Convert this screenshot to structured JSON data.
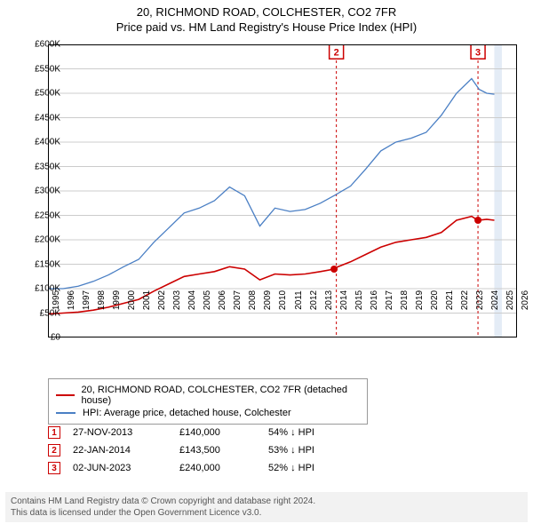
{
  "title_line1": "20, RICHMOND ROAD, COLCHESTER, CO2 7FR",
  "title_line2": "Price paid vs. HM Land Registry's House Price Index (HPI)",
  "chart": {
    "type": "line",
    "background_color": "#ffffff",
    "border_color": "#000000",
    "grid_color": "#cccccc",
    "x_axis": {
      "min_year": 1995,
      "max_year": 2026,
      "ticks": [
        1995,
        1996,
        1997,
        1998,
        1999,
        2000,
        2001,
        2002,
        2003,
        2004,
        2005,
        2006,
        2007,
        2008,
        2009,
        2010,
        2011,
        2012,
        2013,
        2014,
        2015,
        2016,
        2017,
        2018,
        2019,
        2020,
        2021,
        2022,
        2023,
        2024,
        2025,
        2026
      ],
      "label_fontsize": 10
    },
    "y_axis": {
      "min": 0,
      "max": 600000,
      "tick_step": 50000,
      "tick_labels": [
        "£0",
        "£50K",
        "£100K",
        "£150K",
        "£200K",
        "£250K",
        "£300K",
        "£350K",
        "£400K",
        "£450K",
        "£500K",
        "£550K",
        "£600K"
      ],
      "label_fontsize": 10
    },
    "grid": true,
    "grid_direction": "horizontal",
    "series": [
      {
        "name": "20, RICHMOND ROAD, COLCHESTER, CO2 7FR (detached house)",
        "color": "#cc0000",
        "line_width": 1.6,
        "data": [
          [
            1995,
            48000
          ],
          [
            1996,
            50000
          ],
          [
            1997,
            52000
          ],
          [
            1998,
            56000
          ],
          [
            1999,
            62000
          ],
          [
            2000,
            70000
          ],
          [
            2001,
            78000
          ],
          [
            2002,
            95000
          ],
          [
            2003,
            110000
          ],
          [
            2004,
            125000
          ],
          [
            2005,
            130000
          ],
          [
            2006,
            135000
          ],
          [
            2007,
            145000
          ],
          [
            2008,
            140000
          ],
          [
            2009,
            118000
          ],
          [
            2010,
            130000
          ],
          [
            2011,
            128000
          ],
          [
            2012,
            130000
          ],
          [
            2013,
            135000
          ],
          [
            2013.91,
            140000
          ],
          [
            2014.06,
            143500
          ],
          [
            2015,
            155000
          ],
          [
            2016,
            170000
          ],
          [
            2017,
            185000
          ],
          [
            2018,
            195000
          ],
          [
            2019,
            200000
          ],
          [
            2020,
            205000
          ],
          [
            2021,
            215000
          ],
          [
            2022,
            240000
          ],
          [
            2023,
            248000
          ],
          [
            2023.42,
            240000
          ],
          [
            2024,
            242000
          ],
          [
            2024.5,
            240000
          ]
        ]
      },
      {
        "name": "HPI: Average price, detached house, Colchester",
        "color": "#4a7fc4",
        "line_width": 1.3,
        "data": [
          [
            1995,
            100000
          ],
          [
            1996,
            100000
          ],
          [
            1997,
            105000
          ],
          [
            1998,
            115000
          ],
          [
            1999,
            128000
          ],
          [
            2000,
            145000
          ],
          [
            2001,
            160000
          ],
          [
            2002,
            195000
          ],
          [
            2003,
            225000
          ],
          [
            2004,
            255000
          ],
          [
            2005,
            265000
          ],
          [
            2006,
            280000
          ],
          [
            2007,
            308000
          ],
          [
            2008,
            290000
          ],
          [
            2009,
            228000
          ],
          [
            2010,
            265000
          ],
          [
            2011,
            258000
          ],
          [
            2012,
            262000
          ],
          [
            2013,
            275000
          ],
          [
            2014,
            292000
          ],
          [
            2015,
            310000
          ],
          [
            2016,
            345000
          ],
          [
            2017,
            382000
          ],
          [
            2018,
            400000
          ],
          [
            2019,
            408000
          ],
          [
            2020,
            420000
          ],
          [
            2021,
            455000
          ],
          [
            2022,
            500000
          ],
          [
            2023,
            530000
          ],
          [
            2023.5,
            508000
          ],
          [
            2024,
            500000
          ],
          [
            2024.5,
            498000
          ]
        ]
      }
    ],
    "markers": [
      {
        "label": "1",
        "year": 2013.91,
        "value": 140000,
        "color": "#cc0000",
        "on_series": true,
        "show_label": false
      },
      {
        "label": "2",
        "year": 2014.06,
        "value": 143500,
        "color": "#cc0000",
        "on_series": false,
        "label_y": 585000
      },
      {
        "label": "3",
        "year": 2023.42,
        "value": 240000,
        "color": "#cc0000",
        "on_series": true,
        "show_label": true,
        "label_y": 585000
      }
    ],
    "vertical_lines": [
      {
        "year": 2014.06,
        "color": "#cc0000",
        "dash": "3,3"
      },
      {
        "year": 2023.42,
        "color": "#cc0000",
        "dash": "3,3"
      }
    ],
    "shaded_region": {
      "from_year": 2024.5,
      "to_year": 2025,
      "color": "#d9e4f2",
      "opacity": 0.7
    }
  },
  "legend": {
    "items": [
      {
        "color": "#cc0000",
        "label": "20, RICHMOND ROAD, COLCHESTER, CO2 7FR (detached house)"
      },
      {
        "color": "#4a7fc4",
        "label": "HPI: Average price, detached house, Colchester"
      }
    ]
  },
  "events": [
    {
      "label": "1",
      "color": "#cc0000",
      "date": "27-NOV-2013",
      "price": "£140,000",
      "diff": "54% ↓ HPI"
    },
    {
      "label": "2",
      "color": "#cc0000",
      "date": "22-JAN-2014",
      "price": "£143,500",
      "diff": "53% ↓ HPI"
    },
    {
      "label": "3",
      "color": "#cc0000",
      "date": "02-JUN-2023",
      "price": "£240,000",
      "diff": "52% ↓ HPI"
    }
  ],
  "attribution_line1": "Contains HM Land Registry data © Crown copyright and database right 2024.",
  "attribution_line2": "This data is licensed under the Open Government Licence v3.0."
}
